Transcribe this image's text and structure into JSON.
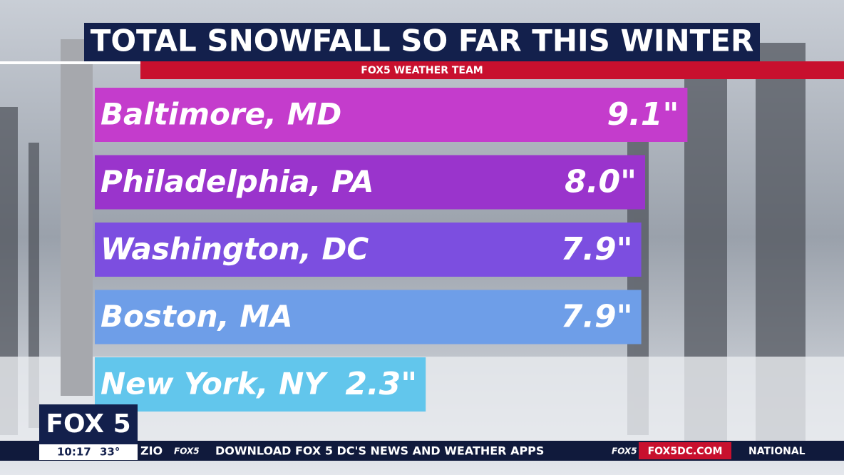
{
  "chart_data": {
    "type": "bar",
    "orientation": "horizontal",
    "title": "TOTAL SNOWFALL SO FAR THIS WINTER",
    "subtitle": "FOX5 WEATHER TEAM",
    "categories": [
      "Baltimore, MD",
      "Philadelphia, PA",
      "Washington, DC",
      "Boston, MA",
      "New York, NY"
    ],
    "values": [
      9.1,
      8.0,
      7.9,
      7.9,
      2.3
    ],
    "value_labels": [
      "9.1\"",
      "8.0\"",
      "7.9\"",
      "7.9\"",
      "2.3\""
    ],
    "colors": [
      "#c43ccc",
      "#9a34cc",
      "#7c4ee0",
      "#6e9ee8",
      "#62c6ec"
    ]
  },
  "broadcast": {
    "logo": "FOX 5",
    "time": "10:17",
    "temperature": "33°",
    "ticker_fragment": "ZIO",
    "ticker_brand": "FOX5",
    "ticker_text": "DOWNLOAD FOX 5 DC'S NEWS AND WEATHER APPS",
    "ticker_brand_2": "FOX5",
    "website": "FOX5DC.COM",
    "section": "NATIONAL"
  }
}
